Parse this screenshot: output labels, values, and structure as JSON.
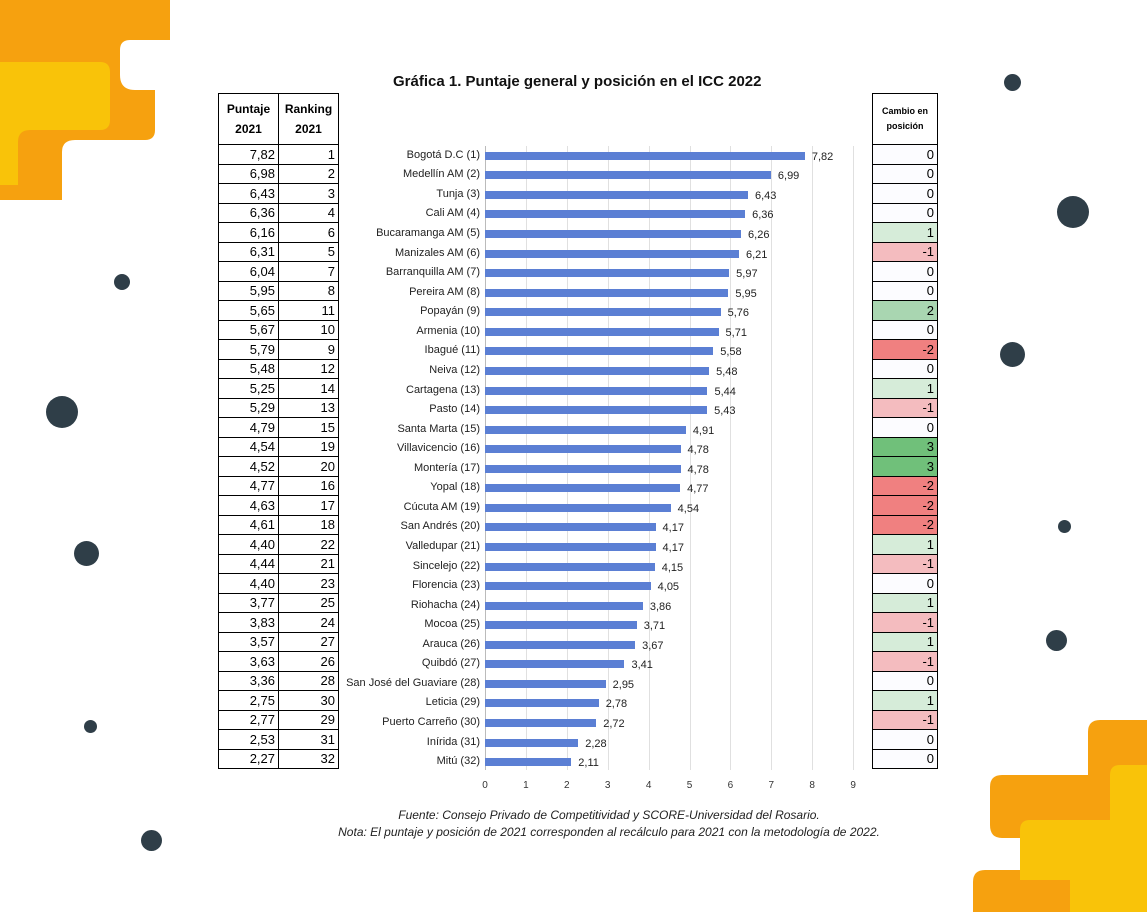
{
  "chart_data": {
    "type": "bar",
    "title": "Gráfica 1. Puntaje general y posición en el ICC 2022",
    "xlim": [
      0,
      9
    ],
    "xticks": [
      "0",
      "1",
      "2",
      "3",
      "4",
      "5",
      "6",
      "7",
      "8",
      "9"
    ],
    "categories": [
      "Bogotá D.C (1)",
      "Medellín AM (2)",
      "Tunja (3)",
      "Cali AM (4)",
      "Bucaramanga AM (5)",
      "Manizales AM (6)",
      "Barranquilla AM (7)",
      "Pereira AM (8)",
      "Popayán (9)",
      "Armenia (10)",
      "Ibagué (11)",
      "Neiva (12)",
      "Cartagena (13)",
      "Pasto (14)",
      "Santa Marta (15)",
      "Villavicencio (16)",
      "Montería (17)",
      "Yopal (18)",
      "Cúcuta AM (19)",
      "San Andrés (20)",
      "Valledupar (21)",
      "Sincelejo (22)",
      "Florencia (23)",
      "Riohacha (24)",
      "Mocoa (25)",
      "Arauca (26)",
      "Quibdó (27)",
      "San José del Guaviare (28)",
      "Leticia (29)",
      "Puerto Carreño (30)",
      "Inírida (31)",
      "Mitú (32)"
    ],
    "values": [
      7.82,
      6.99,
      6.43,
      6.36,
      6.26,
      6.21,
      5.97,
      5.95,
      5.76,
      5.71,
      5.58,
      5.48,
      5.44,
      5.43,
      4.91,
      4.78,
      4.78,
      4.77,
      4.54,
      4.17,
      4.17,
      4.15,
      4.05,
      3.86,
      3.71,
      3.67,
      3.41,
      2.95,
      2.78,
      2.72,
      2.28,
      2.11
    ],
    "value_labels": [
      "7,82",
      "6,99",
      "6,43",
      "6,36",
      "6,26",
      "6,21",
      "5,97",
      "5,95",
      "5,76",
      "5,71",
      "5,58",
      "5,48",
      "5,44",
      "5,43",
      "4,91",
      "4,78",
      "4,78",
      "4,77",
      "4,54",
      "4,17",
      "4,17",
      "4,15",
      "4,05",
      "3,86",
      "3,71",
      "3,67",
      "3,41",
      "2,95",
      "2,78",
      "2,72",
      "2,28",
      "2,11"
    ],
    "bar_color": "#5b7fd4"
  },
  "left_table": {
    "headers": [
      "Puntaje 2021",
      "Ranking 2021"
    ],
    "puntaje": [
      "7,82",
      "6,98",
      "6,43",
      "6,36",
      "6,16",
      "6,31",
      "6,04",
      "5,95",
      "5,65",
      "5,67",
      "5,79",
      "5,48",
      "5,25",
      "5,29",
      "4,79",
      "4,54",
      "4,52",
      "4,77",
      "4,63",
      "4,61",
      "4,40",
      "4,44",
      "4,40",
      "3,77",
      "3,83",
      "3,57",
      "3,63",
      "3,36",
      "2,75",
      "2,77",
      "2,53",
      "2,27"
    ],
    "ranking": [
      "1",
      "2",
      "3",
      "4",
      "6",
      "5",
      "7",
      "8",
      "11",
      "10",
      "9",
      "12",
      "14",
      "13",
      "15",
      "19",
      "20",
      "16",
      "17",
      "18",
      "22",
      "21",
      "23",
      "25",
      "24",
      "27",
      "26",
      "28",
      "30",
      "29",
      "31",
      "32"
    ]
  },
  "right_table": {
    "header": "Cambio en posición",
    "values": [
      "0",
      "0",
      "0",
      "0",
      "1",
      "-1",
      "0",
      "0",
      "2",
      "0",
      "-2",
      "0",
      "1",
      "-1",
      "0",
      "3",
      "3",
      "-2",
      "-2",
      "-2",
      "1",
      "-1",
      "0",
      "1",
      "-1",
      "1",
      "-1",
      "0",
      "1",
      "-1",
      "0",
      "0"
    ],
    "colors": {
      "0": "#fcfcff",
      "1": "#d6ecd9",
      "-1": "#f4bcbf",
      "2": "#a9d6b1",
      "-2": "#f08080",
      "3": "#70c07a"
    }
  },
  "notes": [
    "Fuente: Consejo Privado de Competitividad y SCORE-Universidad del Rosario.",
    "Nota: El puntaje y posición de 2021 corresponden al recálculo para 2021 con la metodología de 2022."
  ]
}
